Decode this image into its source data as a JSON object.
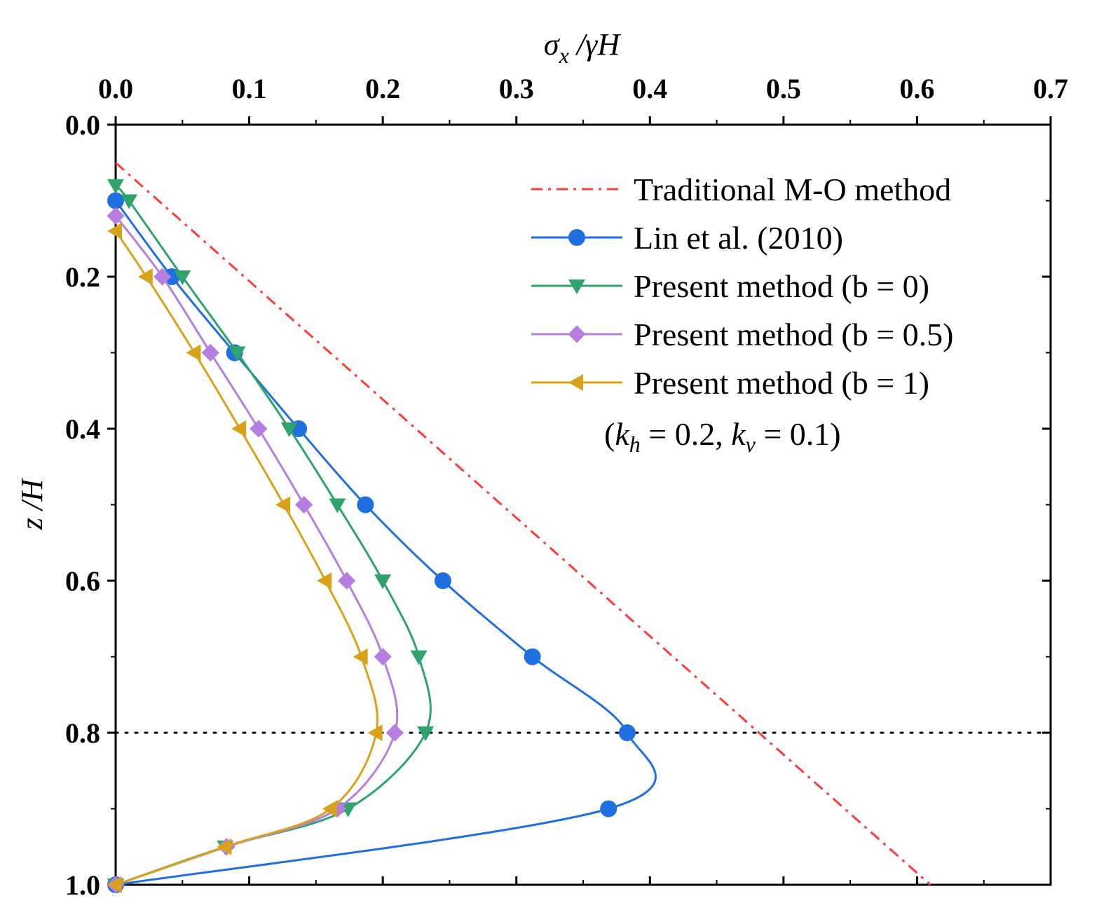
{
  "chart_data": {
    "type": "line",
    "title": "",
    "xlabel": "σ_x /γH",
    "xlabel_parts": {
      "main": "σ",
      "sub": "x",
      "rest": " /γH"
    },
    "ylabel": "z /H",
    "xlim": [
      0.0,
      0.7
    ],
    "ylim": [
      0.0,
      1.0
    ],
    "y_inverted": true,
    "x_axis_position": "top",
    "x_ticks": [
      "0.0",
      "0.1",
      "0.2",
      "0.3",
      "0.4",
      "0.5",
      "0.6",
      "0.7"
    ],
    "y_ticks": [
      "0.0",
      "0.2",
      "0.4",
      "0.6",
      "0.8",
      "1.0"
    ],
    "grid": false,
    "legend_position": "top-right",
    "annotation": {
      "text": "(k_h = 0.2, k_v = 0.1)",
      "parts": [
        "(",
        "k",
        "h",
        " = 0.2, ",
        "k",
        "v",
        " = 0.1)"
      ]
    },
    "reference_line": {
      "label": "",
      "y": 0.8,
      "style": "dotted",
      "color": "#000000"
    },
    "series": [
      {
        "name": "Traditional M-O method",
        "color": "#ff3b3b",
        "style": "dashdot",
        "marker": "none",
        "points": [
          [
            0.0,
            0.05
          ],
          [
            0.61,
            1.0
          ]
        ]
      },
      {
        "name": "Lin et al. (2010)",
        "color": "#1f6fe0",
        "style": "solid",
        "marker": "circle",
        "points": [
          [
            0.0,
            0.1
          ],
          [
            0.042,
            0.2
          ],
          [
            0.089,
            0.3
          ],
          [
            0.137,
            0.4
          ],
          [
            0.187,
            0.5
          ],
          [
            0.245,
            0.6
          ],
          [
            0.312,
            0.7
          ],
          [
            0.383,
            0.8
          ],
          [
            0.369,
            0.9
          ],
          [
            0.0,
            1.0
          ]
        ]
      },
      {
        "name": "Present method (b = 0)",
        "color": "#2ea36b",
        "style": "solid",
        "marker": "triangle-down",
        "points": [
          [
            0.0,
            0.08
          ],
          [
            0.01,
            0.1
          ],
          [
            0.05,
            0.2
          ],
          [
            0.091,
            0.3
          ],
          [
            0.13,
            0.4
          ],
          [
            0.166,
            0.5
          ],
          [
            0.2,
            0.6
          ],
          [
            0.227,
            0.7
          ],
          [
            0.232,
            0.8
          ],
          [
            0.174,
            0.9
          ],
          [
            0.082,
            0.95
          ],
          [
            0.0,
            1.0
          ]
        ]
      },
      {
        "name": "Present method (b = 0.5)",
        "color": "#b57ee0",
        "style": "solid",
        "marker": "diamond",
        "points": [
          [
            0.0,
            0.12
          ],
          [
            0.035,
            0.2
          ],
          [
            0.071,
            0.3
          ],
          [
            0.107,
            0.4
          ],
          [
            0.141,
            0.5
          ],
          [
            0.173,
            0.6
          ],
          [
            0.2,
            0.7
          ],
          [
            0.209,
            0.8
          ],
          [
            0.166,
            0.9
          ],
          [
            0.083,
            0.95
          ],
          [
            0.0,
            1.0
          ]
        ]
      },
      {
        "name": "Present method (b = 1)",
        "color": "#d9a21b",
        "style": "solid",
        "marker": "triangle-left",
        "points": [
          [
            0.0,
            0.14
          ],
          [
            0.023,
            0.2
          ],
          [
            0.059,
            0.3
          ],
          [
            0.093,
            0.4
          ],
          [
            0.126,
            0.5
          ],
          [
            0.157,
            0.6
          ],
          [
            0.184,
            0.7
          ],
          [
            0.195,
            0.8
          ],
          [
            0.161,
            0.9
          ],
          [
            0.082,
            0.95
          ],
          [
            0.0,
            1.0
          ]
        ]
      }
    ]
  }
}
